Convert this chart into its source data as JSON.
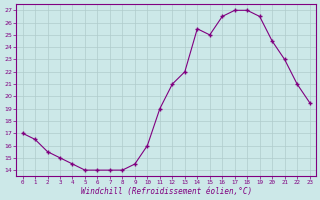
{
  "x": [
    0,
    1,
    2,
    3,
    4,
    5,
    6,
    7,
    8,
    9,
    10,
    11,
    12,
    13,
    14,
    15,
    16,
    17,
    18,
    19,
    20,
    21,
    22,
    23
  ],
  "y": [
    17,
    16.5,
    15.5,
    15,
    14.5,
    14,
    14,
    14,
    14,
    14.5,
    16,
    19,
    21,
    22,
    25.5,
    25,
    26.5,
    27,
    27,
    26.5,
    24.5,
    23,
    21,
    19.5
  ],
  "line_color": "#800080",
  "marker": "+",
  "marker_color": "#800080",
  "bg_color": "#cce8e8",
  "grid_color": "#b0cccc",
  "xlabel": "Windchill (Refroidissement éolien,°C)",
  "xlabel_color": "#800080",
  "ylabel_ticks": [
    14,
    15,
    16,
    17,
    18,
    19,
    20,
    21,
    22,
    23,
    24,
    25,
    26,
    27
  ],
  "xtick_labels": [
    "0",
    "1",
    "2",
    "3",
    "4",
    "5",
    "6",
    "7",
    "8",
    "9",
    "10",
    "11",
    "12",
    "13",
    "14",
    "15",
    "16",
    "17",
    "18",
    "19",
    "20",
    "21",
    "22",
    "23"
  ],
  "ylim": [
    13.5,
    27.5
  ],
  "xlim": [
    -0.5,
    23.5
  ],
  "tick_color": "#800080",
  "axis_color": "#800080"
}
